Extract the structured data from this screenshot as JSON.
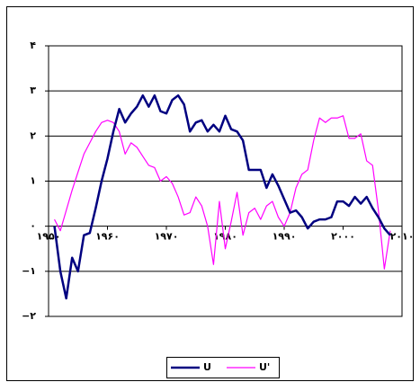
{
  "chart_data": {
    "type": "line",
    "x": [
      1951,
      1952,
      1953,
      1954,
      1955,
      1956,
      1957,
      1958,
      1959,
      1960,
      1961,
      1962,
      1963,
      1964,
      1965,
      1966,
      1967,
      1968,
      1969,
      1970,
      1971,
      1972,
      1973,
      1974,
      1975,
      1976,
      1977,
      1978,
      1979,
      1980,
      1981,
      1982,
      1983,
      1984,
      1985,
      1986,
      1987,
      1988,
      1989,
      1990,
      1991,
      1992,
      1993,
      1994,
      1995,
      1996,
      1997,
      1998,
      1999,
      2000,
      2001,
      2002,
      2003,
      2004,
      2005,
      2006,
      2007,
      2008
    ],
    "series": [
      {
        "name": "U",
        "color": "#000080",
        "values": [
          0.0,
          -1.0,
          -1.6,
          -0.7,
          -1.0,
          -0.2,
          -0.15,
          0.4,
          1.0,
          1.5,
          2.1,
          2.6,
          2.3,
          2.5,
          2.65,
          2.9,
          2.65,
          2.9,
          2.55,
          2.5,
          2.8,
          2.9,
          2.7,
          2.1,
          2.3,
          2.35,
          2.1,
          2.25,
          2.1,
          2.45,
          2.15,
          2.1,
          1.9,
          1.25,
          1.25,
          1.25,
          0.85,
          1.15,
          0.9,
          0.6,
          0.3,
          0.35,
          0.2,
          -0.05,
          0.1,
          0.15,
          0.15,
          0.2,
          0.55,
          0.55,
          0.45,
          0.65,
          0.5,
          0.65,
          0.4,
          0.2,
          -0.05,
          -0.2
        ]
      },
      {
        "name": "U'",
        "color": "#ff00ff",
        "values": [
          0.15,
          -0.1,
          0.35,
          0.8,
          1.2,
          1.6,
          1.85,
          2.1,
          2.3,
          2.35,
          2.3,
          2.1,
          1.6,
          1.85,
          1.75,
          1.55,
          1.35,
          1.3,
          1.0,
          1.1,
          0.95,
          0.65,
          0.25,
          0.3,
          0.65,
          0.45,
          0.0,
          -0.85,
          0.55,
          -0.5,
          0.1,
          0.75,
          -0.2,
          0.3,
          0.4,
          0.15,
          0.45,
          0.55,
          0.2,
          0.0,
          0.3,
          0.85,
          1.15,
          1.25,
          1.9,
          2.4,
          2.3,
          2.4,
          2.4,
          2.45,
          1.95,
          1.95,
          2.05,
          1.45,
          1.35,
          0.35,
          -0.95,
          -0.1
        ]
      }
    ],
    "xlim": [
      1950,
      2010
    ],
    "xticks": [
      {
        "value": 1950,
        "label": "۱۹۵۰"
      },
      {
        "value": 1960,
        "label": "۱۹۶۰"
      },
      {
        "value": 1970,
        "label": "۱۹۷۰"
      },
      {
        "value": 1980,
        "label": "۱۹۸۰"
      },
      {
        "value": 1990,
        "label": "۱۹۹۰"
      },
      {
        "value": 2000,
        "label": "۲۰۰۰"
      },
      {
        "value": 2010,
        "label": "۲۰۱۰"
      }
    ],
    "ylim": [
      -2,
      4
    ],
    "yticks": [
      {
        "value": -2,
        "label": "−۲"
      },
      {
        "value": -1,
        "label": "−۱"
      },
      {
        "value": 0,
        "label": "۰"
      },
      {
        "value": 1,
        "label": "۱"
      },
      {
        "value": 2,
        "label": "۲"
      },
      {
        "value": 3,
        "label": "۳"
      },
      {
        "value": 4,
        "label": "۴"
      }
    ],
    "grid": true,
    "legend": "bottom"
  }
}
